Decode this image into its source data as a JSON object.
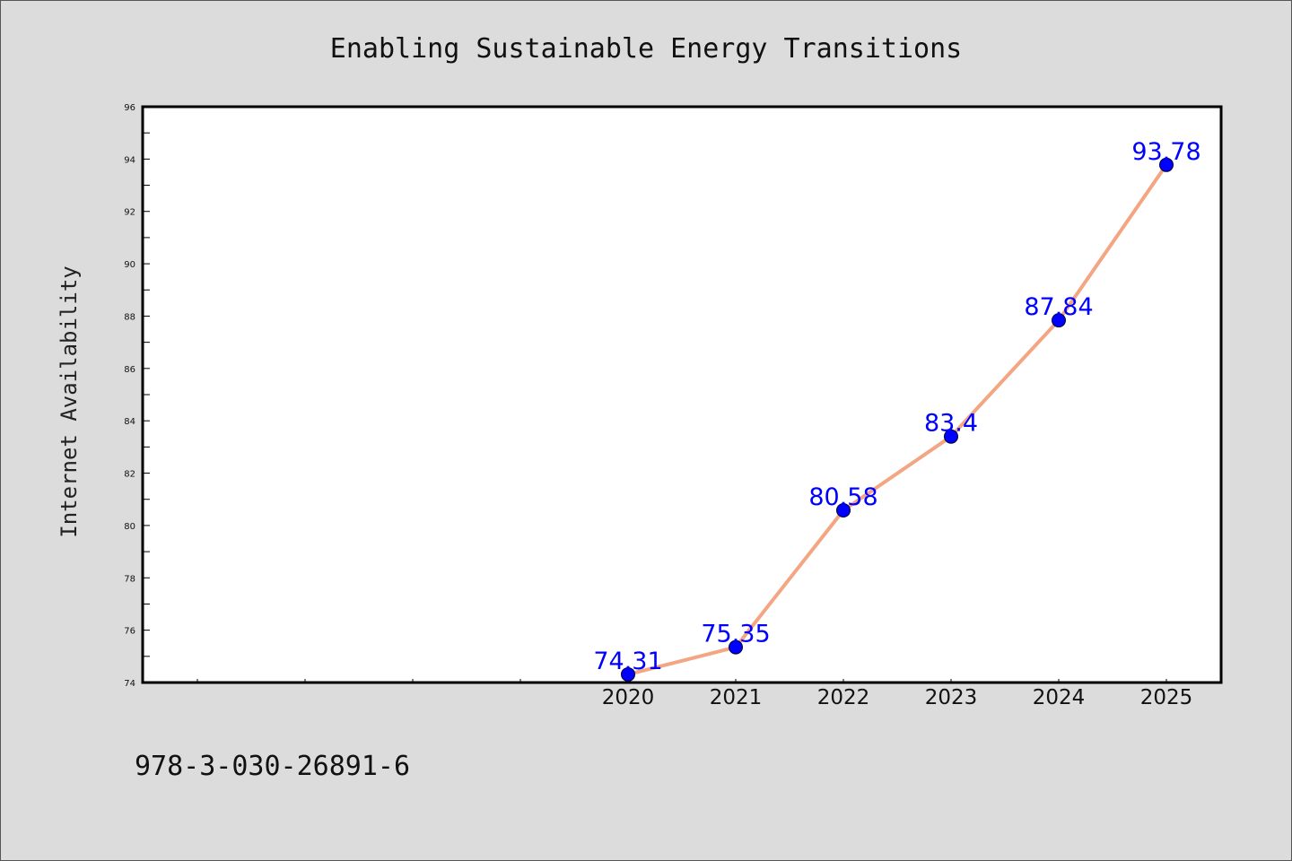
{
  "chart_data": {
    "type": "line",
    "title": "Enabling Sustainable Energy Transitions",
    "xlabel": "",
    "ylabel": "Internet Availability",
    "categories": [
      "2020",
      "2021",
      "2022",
      "2023",
      "2024",
      "2025"
    ],
    "series": [
      {
        "values": [
          74.31,
          75.35,
          80.58,
          83.4,
          87.84,
          93.78
        ],
        "labels": [
          "74.31",
          "75.35",
          "80.58",
          "83.4",
          "87.84",
          "93.78"
        ]
      }
    ],
    "ylim": [
      74,
      96
    ],
    "yticks": [
      "74",
      "76",
      "78",
      "80",
      "82",
      "84",
      "86",
      "88",
      "90",
      "92",
      "94",
      "96"
    ],
    "grid": false,
    "legend": "none",
    "colors": {
      "line": "#f4a582",
      "marker": "#0000ff",
      "data_label": "#0000ff",
      "plot_background": "#ffffff",
      "figure_background": "#dcdcdc"
    }
  },
  "footer": {
    "text": "978-3-030-26891-6"
  }
}
